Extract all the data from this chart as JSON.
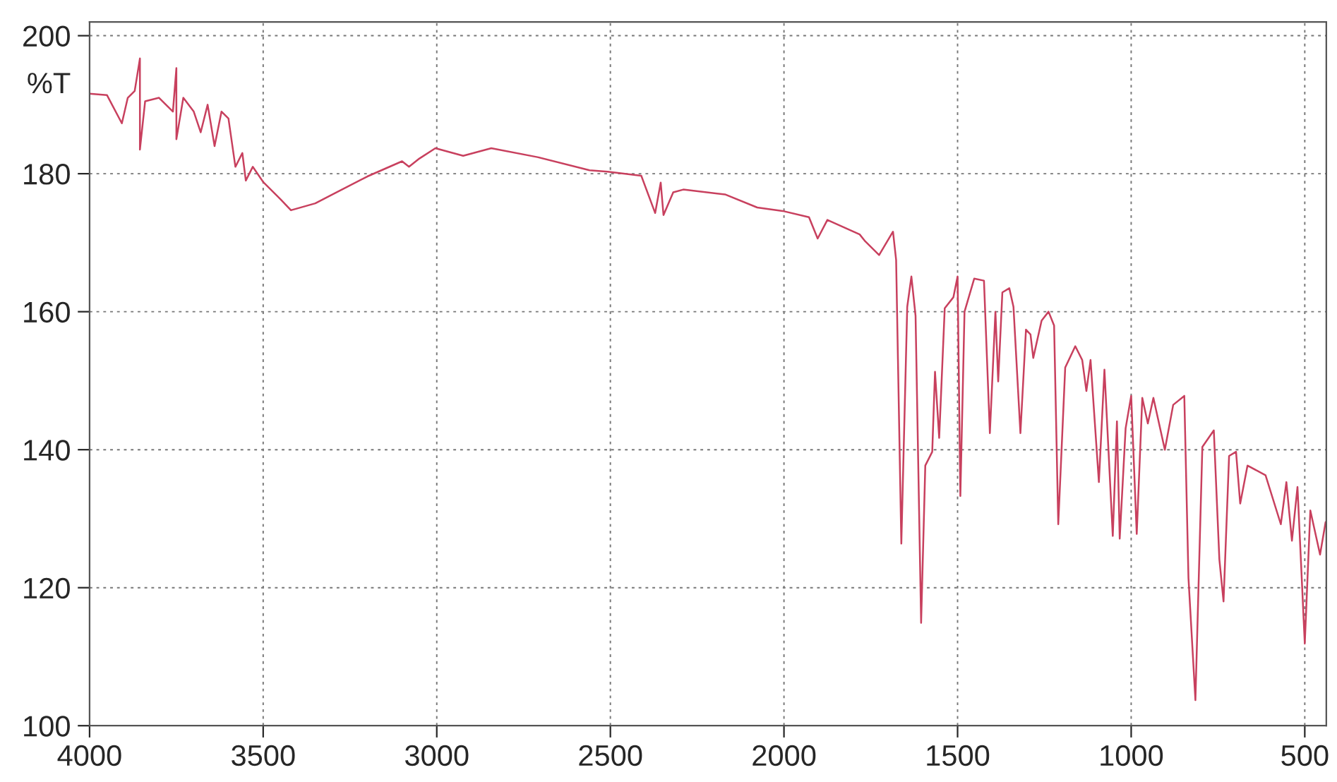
{
  "chart_data": {
    "type": "line",
    "ylabel": "%T",
    "xlim": [
      4000,
      438
    ],
    "ylim": [
      100,
      202
    ],
    "xticks": [
      4000,
      3500,
      3000,
      2500,
      2000,
      1500,
      1000,
      500
    ],
    "yticks": [
      100,
      120,
      140,
      160,
      180,
      200
    ],
    "grid": true,
    "legend": false,
    "marker": "none",
    "line_style": "solid",
    "series": [
      {
        "color": "#c8405e",
        "x": [
          4000,
          3950,
          3907,
          3890,
          3870,
          3855,
          3855,
          3840,
          3800,
          3760,
          3750,
          3750,
          3730,
          3700,
          3680,
          3660,
          3640,
          3620,
          3600,
          3580,
          3560,
          3550,
          3530,
          3500,
          3450,
          3420,
          3350,
          3300,
          3200,
          3100,
          3080,
          3050,
          3004,
          2924,
          2843,
          2710,
          2560,
          2508,
          2411,
          2371,
          2355,
          2347,
          2319,
          2290,
          2170,
          2077,
          2004,
          1928,
          1903,
          1875,
          1782,
          1766,
          1726,
          1686,
          1677,
          1662,
          1645,
          1633,
          1621,
          1605,
          1593,
          1573,
          1565,
          1553,
          1537,
          1512,
          1500,
          1492,
          1480,
          1452,
          1424,
          1407,
          1391,
          1383,
          1371,
          1351,
          1339,
          1319,
          1303,
          1290,
          1282,
          1258,
          1238,
          1222,
          1210,
          1190,
          1161,
          1141,
          1129,
          1117,
          1093,
          1077,
          1053,
          1041,
          1033,
          1016,
          1000,
          984,
          968,
          952,
          936,
          903,
          879,
          847,
          835,
          815,
          795,
          762,
          746,
          734,
          718,
          698,
          686,
          665,
          613,
          569,
          553,
          537,
          521,
          500,
          484,
          456,
          440
        ],
        "values": [
          191.6,
          191.4,
          187.3,
          191,
          192,
          196.7,
          183.5,
          190.5,
          191,
          189,
          195.3,
          185,
          191,
          189,
          186,
          190,
          184,
          189,
          188,
          181,
          183,
          179,
          181,
          178.8,
          176.3,
          174.7,
          175.7,
          177,
          179.6,
          181.8,
          181,
          182.2,
          183.7,
          182.6,
          183.7,
          182.4,
          180.5,
          180.3,
          179.7,
          174.3,
          178.7,
          174,
          177.3,
          177.7,
          177,
          175.1,
          174.6,
          173.7,
          170.6,
          173.3,
          171.2,
          170.2,
          168.2,
          171.6,
          167.5,
          126.4,
          160.7,
          165.1,
          159.4,
          114.9,
          137.7,
          139.7,
          151.3,
          141.7,
          160.5,
          162.1,
          165.1,
          133.3,
          160,
          164.8,
          164.5,
          142.4,
          160,
          149.9,
          162.8,
          163.4,
          160.7,
          142.4,
          157.4,
          156.7,
          153.3,
          158.7,
          160,
          158,
          129.2,
          151.9,
          155,
          153,
          148.5,
          153,
          135.3,
          151.6,
          127.5,
          144.1,
          127.1,
          143.1,
          147.8,
          127.8,
          147.5,
          143.8,
          147.5,
          140,
          146.5,
          147.8,
          121.4,
          103.7,
          140.4,
          142.8,
          124.1,
          118,
          139.1,
          139.7,
          132.2,
          137.7,
          136.3,
          129.2,
          135.3,
          126.8,
          134.6,
          111.9,
          131.2,
          124.8,
          129.5
        ]
      }
    ]
  }
}
